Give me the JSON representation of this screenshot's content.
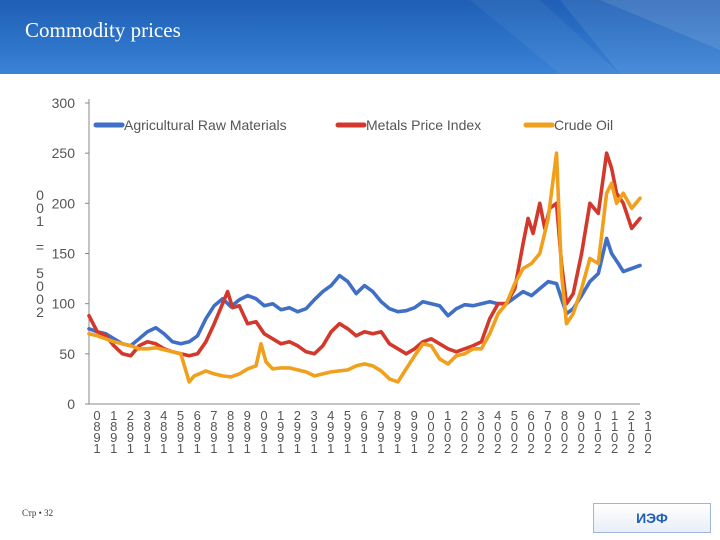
{
  "slide": {
    "title": "Commodity prices",
    "footer_left": "Стр • 32",
    "footer_right": "ИЭФ"
  },
  "chart_data": {
    "type": "line",
    "title": "",
    "ylabel": "2005 = 100",
    "xlabel": "",
    "ylim": [
      0,
      300
    ],
    "yticks": [
      0,
      50,
      100,
      150,
      200,
      250,
      300
    ],
    "xlim": [
      1980,
      2013
    ],
    "xticks": [
      "1980",
      "1981",
      "1982",
      "1983",
      "1984",
      "1985",
      "1986",
      "1987",
      "1988",
      "1989",
      "1990",
      "1991",
      "1992",
      "1993",
      "1994",
      "1995",
      "1996",
      "1997",
      "1998",
      "1999",
      "2000",
      "2001",
      "2002",
      "2003",
      "2004",
      "2005",
      "2006",
      "2007",
      "2008",
      "2009",
      "2010",
      "2011",
      "2012",
      "2013"
    ],
    "grid": false,
    "legend": "top",
    "series": [
      {
        "name": "Agricultural Raw Materials",
        "color": "#3f6fc6",
        "x": [
          1980,
          1980.5,
          1981,
          1981.5,
          1982,
          1982.5,
          1983,
          1983.5,
          1984,
          1984.5,
          1985,
          1985.5,
          1986,
          1986.5,
          1987,
          1987.5,
          1988,
          1988.5,
          1989,
          1989.5,
          1990,
          1990.5,
          1991,
          1991.5,
          1992,
          1992.5,
          1993,
          1993.5,
          1994,
          1994.5,
          1995,
          1995.5,
          1996,
          1996.5,
          1997,
          1997.5,
          1998,
          1998.5,
          1999,
          1999.5,
          2000,
          2000.5,
          2001,
          2001.5,
          2002,
          2002.5,
          2003,
          2003.5,
          2004,
          2004.5,
          2005,
          2005.5,
          2006,
          2006.5,
          2007,
          2007.5,
          2008,
          2008.3,
          2008.6,
          2009,
          2009.5,
          2010,
          2010.5,
          2011,
          2011.3,
          2011.7,
          2012,
          2012.5,
          2013
        ],
        "values": [
          75,
          72,
          70,
          65,
          60,
          58,
          65,
          72,
          76,
          70,
          62,
          60,
          62,
          68,
          85,
          98,
          105,
          97,
          104,
          108,
          105,
          98,
          100,
          94,
          96,
          92,
          95,
          104,
          112,
          118,
          128,
          122,
          110,
          118,
          112,
          102,
          95,
          92,
          93,
          96,
          102,
          100,
          98,
          88,
          95,
          99,
          98,
          100,
          102,
          100,
          100,
          106,
          112,
          108,
          115,
          122,
          120,
          105,
          90,
          95,
          108,
          122,
          130,
          165,
          150,
          140,
          132,
          135,
          138
        ]
      },
      {
        "name": "Metals Price Index",
        "color": "#d2382b",
        "x": [
          1980,
          1980.5,
          1981,
          1981.5,
          1982,
          1982.5,
          1983,
          1983.5,
          1984,
          1984.5,
          1985,
          1985.5,
          1986,
          1986.5,
          1987,
          1987.5,
          1988,
          1988.3,
          1988.6,
          1989,
          1989.5,
          1990,
          1990.5,
          1991,
          1991.5,
          1992,
          1992.5,
          1993,
          1993.5,
          1994,
          1994.5,
          1995,
          1995.5,
          1996,
          1996.5,
          1997,
          1997.5,
          1998,
          1998.5,
          1999,
          1999.5,
          2000,
          2000.5,
          2001,
          2001.5,
          2002,
          2002.5,
          2003,
          2003.5,
          2004,
          2004.5,
          2005,
          2005.5,
          2006,
          2006.3,
          2006.6,
          2007,
          2007.3,
          2007.6,
          2008,
          2008.3,
          2008.6,
          2009,
          2009.5,
          2010,
          2010.5,
          2011,
          2011.3,
          2011.6,
          2012,
          2012.5,
          2013
        ],
        "values": [
          88,
          72,
          68,
          58,
          50,
          48,
          58,
          62,
          60,
          55,
          52,
          50,
          48,
          50,
          62,
          80,
          100,
          112,
          96,
          98,
          80,
          82,
          70,
          65,
          60,
          62,
          58,
          52,
          50,
          58,
          72,
          80,
          75,
          68,
          72,
          70,
          72,
          60,
          55,
          50,
          55,
          62,
          65,
          60,
          55,
          52,
          55,
          58,
          62,
          85,
          100,
          100,
          115,
          160,
          185,
          170,
          200,
          175,
          195,
          200,
          140,
          100,
          110,
          150,
          200,
          190,
          250,
          235,
          210,
          200,
          175,
          185
        ]
      },
      {
        "name": "Crude Oil",
        "color": "#f0a01c",
        "x": [
          1980,
          1980.5,
          1981,
          1981.5,
          1982,
          1982.5,
          1983,
          1983.5,
          1984,
          1984.5,
          1985,
          1985.5,
          1986,
          1986.3,
          1986.6,
          1987,
          1987.5,
          1988,
          1988.5,
          1989,
          1989.5,
          1990,
          1990.3,
          1990.6,
          1991,
          1991.5,
          1992,
          1992.5,
          1993,
          1993.5,
          1994,
          1994.5,
          1995,
          1995.5,
          1996,
          1996.5,
          1997,
          1997.5,
          1998,
          1998.5,
          1999,
          1999.5,
          2000,
          2000.5,
          2001,
          2001.5,
          2002,
          2002.5,
          2003,
          2003.5,
          2004,
          2004.5,
          2005,
          2005.5,
          2006,
          2006.5,
          2007,
          2007.5,
          2008,
          2008.3,
          2008.6,
          2009,
          2009.5,
          2010,
          2010.5,
          2011,
          2011.3,
          2011.6,
          2012,
          2012.5,
          2013
        ],
        "values": [
          70,
          68,
          65,
          62,
          60,
          58,
          55,
          55,
          56,
          54,
          52,
          50,
          22,
          28,
          30,
          33,
          30,
          28,
          27,
          30,
          35,
          38,
          60,
          42,
          35,
          36,
          36,
          34,
          32,
          28,
          30,
          32,
          33,
          34,
          38,
          40,
          38,
          33,
          25,
          22,
          35,
          48,
          60,
          58,
          45,
          40,
          48,
          50,
          55,
          55,
          70,
          90,
          100,
          120,
          135,
          140,
          150,
          185,
          250,
          130,
          80,
          90,
          115,
          145,
          140,
          210,
          220,
          200,
          210,
          195,
          205
        ]
      }
    ]
  }
}
